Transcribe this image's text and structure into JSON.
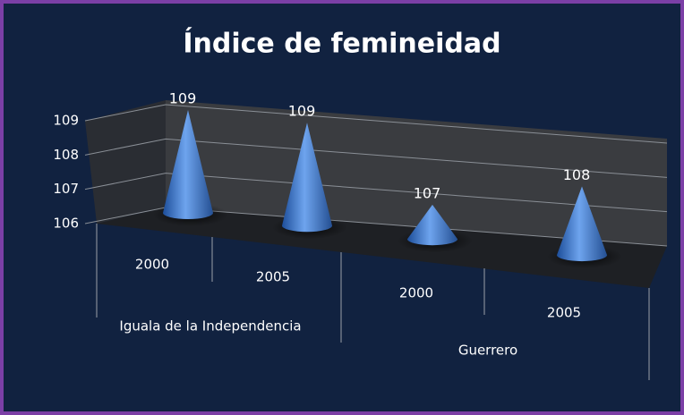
{
  "chart_data": {
    "type": "cone",
    "title": "Índice de femineidad",
    "categories": [
      "2000",
      "2005",
      "2000",
      "2005"
    ],
    "groups": [
      "Iguala de la Independencia",
      "Guerrero"
    ],
    "values": [
      109,
      109,
      107,
      108
    ],
    "color": "#4a86d8",
    "ylim": [
      106,
      109
    ],
    "yticks": [
      106,
      107,
      108,
      109
    ],
    "grid": true
  }
}
